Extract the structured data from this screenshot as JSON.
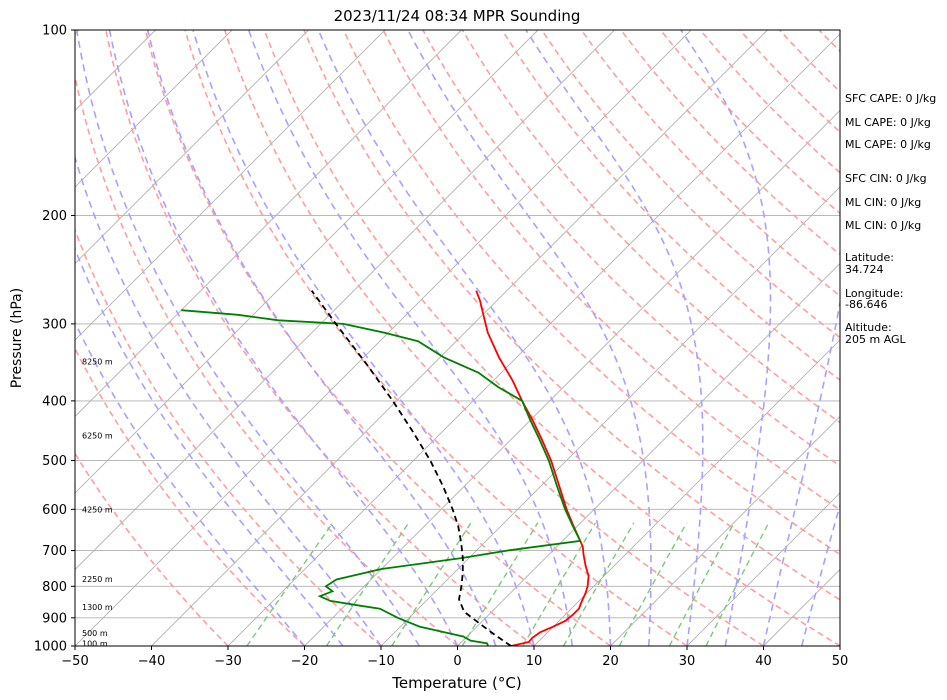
{
  "chart_data": {
    "type": "line",
    "title": "2023/11/24 08:34 MPR Sounding",
    "xlabel": "Temperature (°C)",
    "ylabel": "Pressure (hPa)",
    "xlim": [
      -50,
      50
    ],
    "ylim": [
      1000,
      100
    ],
    "y_scale": "log",
    "skew": "skew-T",
    "grid": true,
    "x_ticks": [
      "−50",
      "−40",
      "−30",
      "−20",
      "−10",
      "0",
      "10",
      "20",
      "30",
      "40",
      "50"
    ],
    "x_tick_values": [
      -50,
      -40,
      -30,
      -20,
      -10,
      0,
      10,
      20,
      30,
      40,
      50
    ],
    "y_ticks": [
      "100",
      "200",
      "300",
      "400",
      "500",
      "600",
      "700",
      "800",
      "900",
      "1000"
    ],
    "y_tick_values": [
      100,
      200,
      300,
      400,
      500,
      600,
      700,
      800,
      900,
      1000
    ],
    "series": [
      {
        "color": "#ff0000",
        "points": [
          {
            "p": 1000,
            "t": 7.0
          },
          {
            "p": 985,
            "t": 8.8
          },
          {
            "p": 970,
            "t": 8.7
          },
          {
            "p": 950,
            "t": 9.0
          },
          {
            "p": 930,
            "t": 10.0
          },
          {
            "p": 910,
            "t": 10.8
          },
          {
            "p": 890,
            "t": 11.0
          },
          {
            "p": 870,
            "t": 11.0
          },
          {
            "p": 850,
            "t": 10.5
          },
          {
            "p": 820,
            "t": 9.8
          },
          {
            "p": 800,
            "t": 9.2
          },
          {
            "p": 770,
            "t": 8.0
          },
          {
            "p": 740,
            "t": 6.2
          },
          {
            "p": 710,
            "t": 4.5
          },
          {
            "p": 690,
            "t": 3.4
          },
          {
            "p": 675,
            "t": 2.3
          },
          {
            "p": 640,
            "t": -0.4
          },
          {
            "p": 600,
            "t": -3.6
          },
          {
            "p": 550,
            "t": -7.6
          },
          {
            "p": 500,
            "t": -12.0
          },
          {
            "p": 460,
            "t": -16.2
          },
          {
            "p": 430,
            "t": -19.7
          },
          {
            "p": 400,
            "t": -23.6
          },
          {
            "p": 370,
            "t": -27.6
          },
          {
            "p": 340,
            "t": -32.3
          },
          {
            "p": 310,
            "t": -37.0
          },
          {
            "p": 290,
            "t": -39.9
          },
          {
            "p": 275,
            "t": -42.2
          },
          {
            "p": 265,
            "t": -44.0
          }
        ]
      },
      {
        "color": "#008000",
        "points": [
          {
            "p": 1000,
            "t": 4.0
          },
          {
            "p": 990,
            "t": 3.5
          },
          {
            "p": 980,
            "t": 1.0
          },
          {
            "p": 965,
            "t": -0.5
          },
          {
            "p": 950,
            "t": -3.5
          },
          {
            "p": 930,
            "t": -7.5
          },
          {
            "p": 900,
            "t": -11.5
          },
          {
            "p": 870,
            "t": -15.0
          },
          {
            "p": 860,
            "t": -18.0
          },
          {
            "p": 845,
            "t": -22.5
          },
          {
            "p": 830,
            "t": -24.5
          },
          {
            "p": 815,
            "t": -23.5
          },
          {
            "p": 800,
            "t": -25.0
          },
          {
            "p": 780,
            "t": -24.5
          },
          {
            "p": 750,
            "t": -20.0
          },
          {
            "p": 720,
            "t": -11.0
          },
          {
            "p": 700,
            "t": -6.0
          },
          {
            "p": 675,
            "t": 2.3
          },
          {
            "p": 640,
            "t": -0.5
          },
          {
            "p": 600,
            "t": -3.8
          },
          {
            "p": 550,
            "t": -7.9
          },
          {
            "p": 500,
            "t": -12.3
          },
          {
            "p": 460,
            "t": -16.5
          },
          {
            "p": 430,
            "t": -20.0
          },
          {
            "p": 400,
            "t": -23.6
          },
          {
            "p": 380,
            "t": -28.5
          },
          {
            "p": 360,
            "t": -33.0
          },
          {
            "p": 340,
            "t": -39.5
          },
          {
            "p": 320,
            "t": -45.0
          },
          {
            "p": 310,
            "t": -50.5
          },
          {
            "p": 300,
            "t": -57.0
          },
          {
            "p": 296,
            "t": -66.0
          },
          {
            "p": 290,
            "t": -72.0
          },
          {
            "p": 285,
            "t": -80.0
          }
        ]
      },
      {
        "color": "#000000",
        "linestyle": "dashed",
        "points": [
          {
            "p": 1000,
            "t": 7.0
          },
          {
            "p": 960,
            "t": 3.5
          },
          {
            "p": 920,
            "t": 0.0
          },
          {
            "p": 880,
            "t": -3.6
          },
          {
            "p": 840,
            "t": -5.9
          },
          {
            "p": 800,
            "t": -7.3
          },
          {
            "p": 760,
            "t": -8.9
          },
          {
            "p": 720,
            "t": -10.8
          },
          {
            "p": 680,
            "t": -13.0
          },
          {
            "p": 640,
            "t": -15.5
          },
          {
            "p": 600,
            "t": -18.5
          },
          {
            "p": 550,
            "t": -22.8
          },
          {
            "p": 500,
            "t": -27.8
          },
          {
            "p": 450,
            "t": -33.7
          },
          {
            "p": 400,
            "t": -40.5
          },
          {
            "p": 350,
            "t": -48.5
          },
          {
            "p": 300,
            "t": -58.0
          },
          {
            "p": 265,
            "t": -65.5
          }
        ]
      }
    ],
    "height_labels": [
      {
        "p": 345,
        "text": "8250 m"
      },
      {
        "p": 455,
        "text": "6250 m"
      },
      {
        "p": 600,
        "text": "4250 m"
      },
      {
        "p": 778,
        "text": "2250 m"
      },
      {
        "p": 865,
        "text": "1300 m"
      },
      {
        "p": 953,
        "text": "500 m"
      },
      {
        "p": 990,
        "text": "100 m"
      }
    ],
    "reference_lines": {
      "isotherms_color": "#b0b0b0",
      "dry_adiabats_color": "#ff9e9e",
      "moist_adiabats_color": "#a9a0ff",
      "mixing_ratio_color": "#7ec77e"
    }
  },
  "info": {
    "sfc_cape": "SFC CAPE: 0 J/kg",
    "ml_cape_1": "ML CAPE: 0 J/kg",
    "ml_cape_2": "ML CAPE: 0 J/kg",
    "sfc_cin": "SFC CIN: 0 J/kg",
    "ml_cin_1": "ML CIN: 0 J/kg",
    "ml_cin_2": "ML CIN: 0 J/kg",
    "latitude_label": "Latitude:",
    "latitude_value": "34.724",
    "longitude_label": "Longitude:",
    "longitude_value": "-86.646",
    "altitude_label": "Altitude:",
    "altitude_value": "205 m AGL"
  }
}
